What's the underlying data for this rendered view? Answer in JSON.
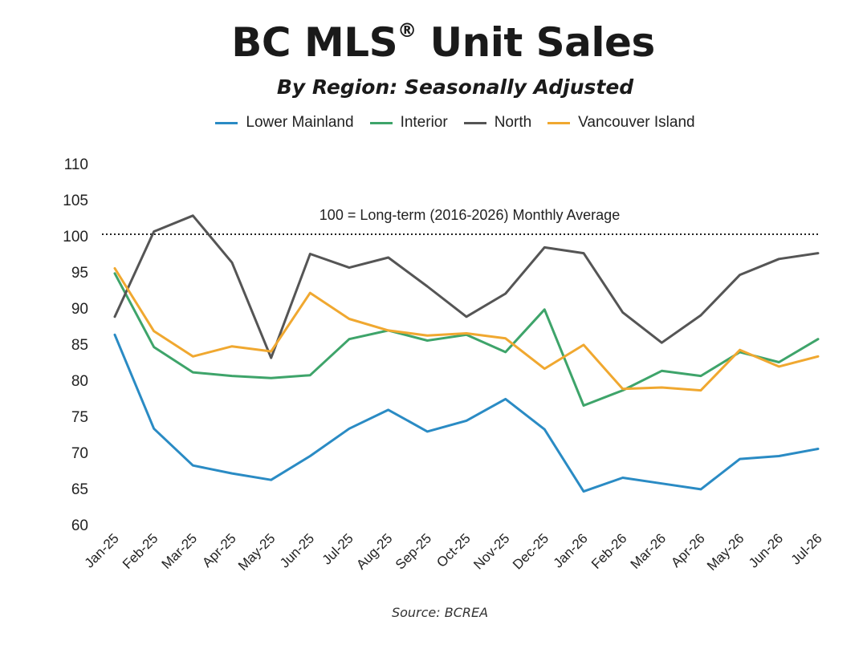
{
  "chart_data": {
    "type": "line",
    "title": "BC MLS",
    "title_mark": "®",
    "title_suffix": " Unit Sales",
    "subtitle": "By Region: Seasonally Adjusted",
    "source": "Source: BCREA",
    "categories": [
      "Jan-25",
      "Feb-25",
      "Mar-25",
      "Apr-25",
      "May-25",
      "Jun-25",
      "Jul-25",
      "Aug-25",
      "Sep-25",
      "Oct-25",
      "Nov-25",
      "Dec-25",
      "Jan-26",
      "Feb-26",
      "Mar-26",
      "Apr-26",
      "May-26",
      "Jun-26",
      "Jul-26"
    ],
    "ylim": [
      60,
      110
    ],
    "yticks": [
      60,
      65,
      70,
      75,
      80,
      85,
      90,
      95,
      100,
      105,
      110
    ],
    "grid": false,
    "legend_position": "top",
    "reference_line": {
      "value": 100,
      "label": "100 =  Long-term (2016-2026) Monthly Average",
      "style": "dotted"
    },
    "series": [
      {
        "name": "Lower Mainland",
        "color": "#2a8bc4",
        "values": [
          86.3,
          73.3,
          68.2,
          67.1,
          66.2,
          69.5,
          73.3,
          75.9,
          72.9,
          74.4,
          77.4,
          73.2,
          64.6,
          66.5,
          65.7,
          64.9,
          69.1,
          69.5,
          70.5
        ]
      },
      {
        "name": "Interior",
        "color": "#3ea46a",
        "values": [
          94.8,
          84.6,
          81.1,
          80.6,
          80.3,
          80.7,
          85.7,
          86.9,
          85.5,
          86.3,
          83.9,
          89.8,
          76.5,
          78.6,
          81.3,
          80.6,
          83.9,
          82.5,
          85.7
        ]
      },
      {
        "name": "North",
        "color": "#555555",
        "values": [
          88.8,
          100.6,
          102.8,
          96.3,
          83.1,
          97.5,
          95.6,
          97.0,
          93.0,
          88.8,
          92.0,
          98.4,
          97.6,
          89.4,
          85.2,
          89.0,
          94.6,
          96.8,
          97.6
        ]
      },
      {
        "name": "Vancouver Island",
        "color": "#f0a830",
        "values": [
          95.5,
          86.8,
          83.3,
          84.7,
          84.0,
          92.1,
          88.5,
          86.9,
          86.2,
          86.5,
          85.8,
          81.6,
          84.9,
          78.8,
          79.0,
          78.6,
          84.2,
          81.9,
          83.3
        ]
      }
    ]
  }
}
